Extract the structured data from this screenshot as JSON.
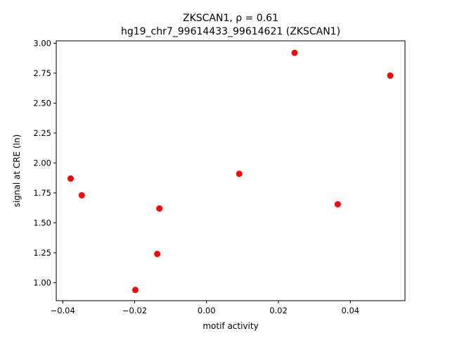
{
  "chart_data": {
    "type": "scatter",
    "title_line1": "ZKSCAN1, ρ = 0.61",
    "title_line2": "hg19_chr7_99614433_99614621 (ZKSCAN1)",
    "xlabel": "motif activity",
    "ylabel": "signal at CRE (ln)",
    "xlim": [
      -0.0418,
      0.0552
    ],
    "ylim": [
      0.85,
      3.02
    ],
    "xticks": [
      -0.04,
      -0.02,
      0.0,
      0.02,
      0.04
    ],
    "xtick_labels": [
      "−0.04",
      "−0.02",
      "0.00",
      "0.02",
      "0.04"
    ],
    "yticks": [
      1.0,
      1.25,
      1.5,
      1.75,
      2.0,
      2.25,
      2.5,
      2.75,
      3.0
    ],
    "ytick_labels": [
      "1.00",
      "1.25",
      "1.50",
      "1.75",
      "2.00",
      "2.25",
      "2.50",
      "2.75",
      "3.00"
    ],
    "grid": false,
    "marker_color": "#ff0000",
    "points": [
      {
        "x": -0.0378,
        "y": 1.87
      },
      {
        "x": -0.0347,
        "y": 1.73
      },
      {
        "x": -0.0198,
        "y": 0.94
      },
      {
        "x": -0.0137,
        "y": 1.24
      },
      {
        "x": -0.0131,
        "y": 1.62
      },
      {
        "x": 0.0091,
        "y": 1.91
      },
      {
        "x": 0.0245,
        "y": 2.92
      },
      {
        "x": 0.0365,
        "y": 1.655
      },
      {
        "x": 0.0511,
        "y": 2.73
      }
    ]
  }
}
